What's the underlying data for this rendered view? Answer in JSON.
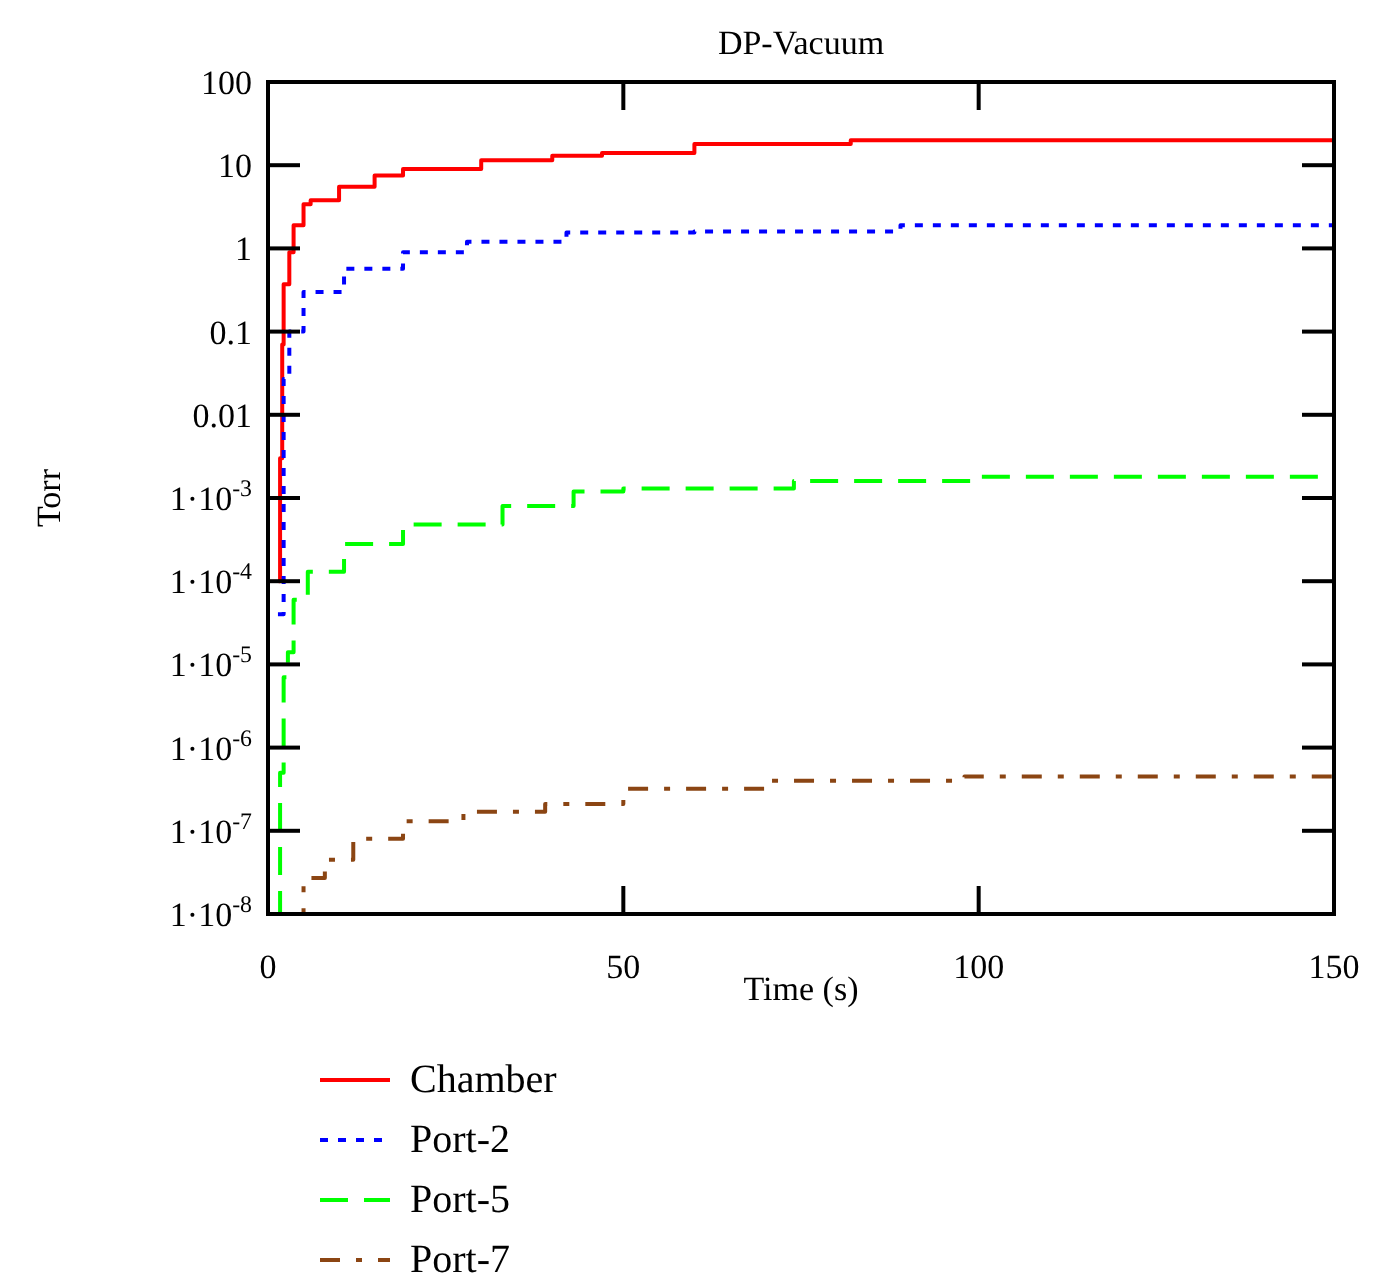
{
  "chart_data": {
    "type": "step",
    "title": "DP-Vacuum",
    "xlabel": "Time (s)",
    "ylabel": "Torr",
    "log": "y",
    "grid": false,
    "legend": "bottom left",
    "xlim": [
      0,
      150
    ],
    "xticks": [
      0,
      50,
      100,
      150
    ],
    "ylim": [
      1e-08,
      100
    ],
    "yticks": [
      100,
      10,
      1,
      0.1,
      0.01,
      {
        "value": 0.001,
        "label": "1·10$^{-3}$"
      },
      {
        "value": 0.0001,
        "label": "1·10$^{-4}$"
      },
      {
        "value": 1e-05,
        "label": "1·10$^{-5}$"
      },
      {
        "value": 1e-06,
        "label": "1·10$^{-6}$"
      },
      {
        "value": 1e-07,
        "label": "1·10$^{-7}$"
      },
      {
        "value": 1e-08,
        "label": "1·10$^{-8}$"
      }
    ],
    "series": [
      {
        "name": "Chamber",
        "color": "#ff0000",
        "line_style": "solid",
        "x": [
          1.5,
          1.7,
          2,
          2.2,
          3,
          3.6,
          5,
          6,
          10,
          15,
          19,
          30,
          40,
          47,
          60,
          82,
          150
        ],
        "values": [
          0.0001,
          0.003,
          0.07,
          0.37,
          0.9,
          1.9,
          3.4,
          3.8,
          5.5,
          7.5,
          9,
          11.5,
          13,
          14,
          18,
          20,
          20
        ]
      },
      {
        "name": "Port-2",
        "color": "#0000ff",
        "line_style": "dotted",
        "x": [
          1.4,
          2.2,
          3,
          5,
          10.7,
          19,
          28,
          42,
          60,
          89,
          150
        ],
        "values": [
          4e-05,
          0.027,
          0.1,
          0.3,
          0.57,
          0.9,
          1.2,
          1.55,
          1.6,
          1.9,
          1.9
        ]
      },
      {
        "name": "Port-5",
        "color": "#00ff00",
        "line_style": "dashed",
        "x": [
          1,
          1.7,
          2.2,
          2.8,
          3.6,
          5.6,
          10.7,
          19,
          33,
          43,
          50,
          74,
          100,
          150
        ],
        "values": [
          1e-08,
          5e-07,
          7e-06,
          1.4e-05,
          6e-05,
          0.00013,
          0.00028,
          0.00048,
          0.0008,
          0.0012,
          0.0013,
          0.0016,
          0.0018,
          0.0018
        ]
      },
      {
        "name": "Port-7",
        "color": "#8b4513",
        "line_style": "dashdot",
        "x": [
          3,
          5,
          8,
          12,
          19,
          27.5,
          39,
          50,
          70,
          98,
          150
        ],
        "values": [
          1e-08,
          2.7e-08,
          4.5e-08,
          8e-08,
          1.3e-07,
          1.7e-07,
          2.1e-07,
          3.2e-07,
          4e-07,
          4.5e-07,
          4.5e-07
        ]
      }
    ]
  }
}
